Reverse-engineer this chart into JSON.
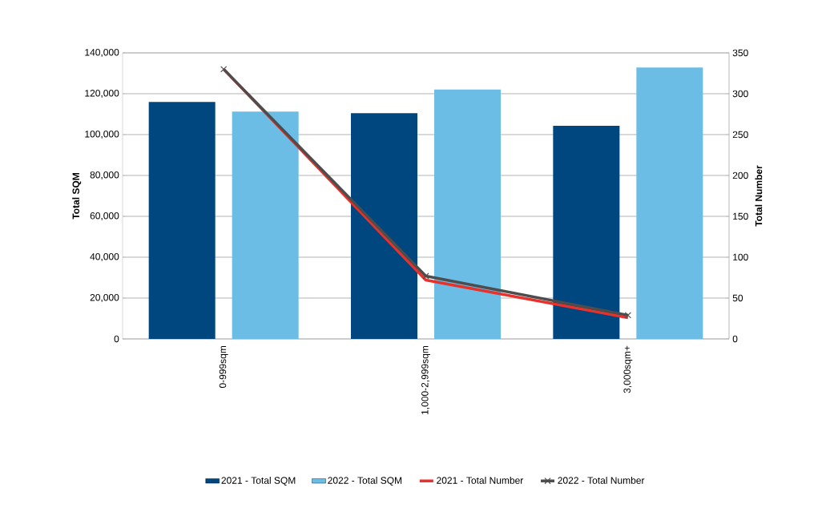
{
  "chart_data": {
    "type": "bar",
    "categories": [
      "0-999sqm",
      "1,000-2,999sqm",
      "3,000sqm+"
    ],
    "series": [
      {
        "name": "2021 - Total SQM",
        "color": "#00467f",
        "values": [
          116000,
          110500,
          104300
        ]
      },
      {
        "name": "2022 - Total SQM",
        "color": "#6cbde6",
        "values": [
          111300,
          122100,
          132800
        ]
      },
      {
        "name": "2021 - Total Number",
        "type": "line",
        "axis": "y2",
        "color": "#e8312a",
        "marker": "none",
        "values": [
          330,
          72,
          26
        ]
      },
      {
        "name": "2022 - Total Number",
        "type": "line",
        "axis": "y2",
        "color": "#4d4d4d",
        "marker": "cross",
        "values": [
          330,
          77,
          29
        ]
      }
    ],
    "ylabel": "Total SQM",
    "y2label": "Total Number",
    "ylim": [
      0,
      140000
    ],
    "yticks": [
      {
        "value": 0,
        "label": "0"
      },
      {
        "value": 20000,
        "label": "20,000"
      },
      {
        "value": 40000,
        "label": "40,000"
      },
      {
        "value": 60000,
        "label": "60,000"
      },
      {
        "value": 80000,
        "label": "80,000"
      },
      {
        "value": 100000,
        "label": "100,000"
      },
      {
        "value": 120000,
        "label": "120,000"
      },
      {
        "value": 140000,
        "label": "140,000"
      }
    ],
    "y2lim": [
      0,
      350
    ],
    "y2ticks": [
      0,
      50,
      100,
      150,
      200,
      250,
      300,
      350
    ],
    "grid": "y",
    "legend": "bottom"
  }
}
